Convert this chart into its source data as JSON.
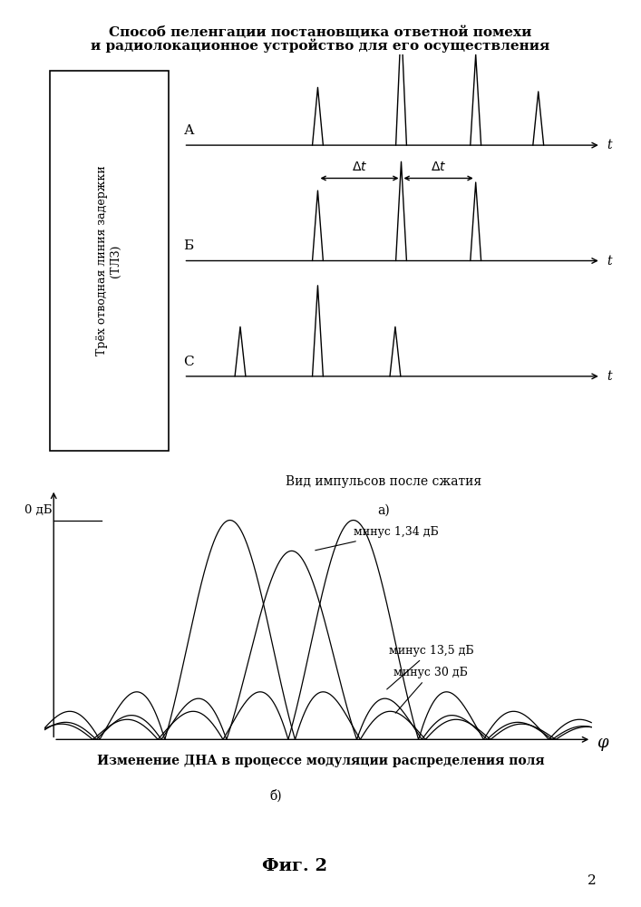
{
  "title_line1": "Способ пеленгации постановщика ответной помехи",
  "title_line2": "и радиолокационное устройство для его осуществления",
  "box_label_line1": "Трёх отводная",
  "box_label_line2": "линия задержки",
  "box_label_line3": "(ТЛЗ)",
  "row_labels": [
    "А",
    "Б",
    "С"
  ],
  "caption_a": "Вид импульсов после сжатия",
  "caption_a2": "а)",
  "annotation_0dB": "0 дБ",
  "annotation_134dB": "минус 1,34 дБ",
  "annotation_135dB": "минус 13,5 дБ",
  "annotation_30dB": "минус 30 дБ",
  "phi_label": "φ",
  "caption_b": "Изменение ДНА в процессе модуляции распределения поля",
  "caption_b2": "б)",
  "fig_label": "Фиг. 2",
  "page_number": "2",
  "background_color": "#ffffff",
  "line_color": "#000000"
}
